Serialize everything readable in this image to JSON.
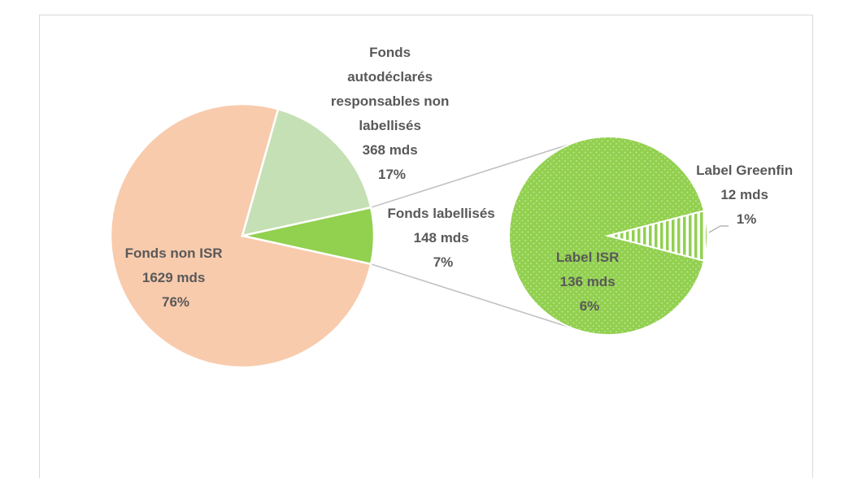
{
  "chart_data": {
    "type": "pie",
    "subtype": "pie-of-pie",
    "title": "",
    "main_pie": {
      "slices": [
        {
          "key": "non_isr",
          "name": "Fonds non ISR",
          "value": 1629,
          "value_label": "1629 mds",
          "pct": "76%",
          "color": "#f8cbad"
        },
        {
          "key": "auto",
          "name": "Fonds autodéclarés responsables non labellisés",
          "name_lines": [
            "Fonds",
            "autodéclarés",
            "responsables non",
            "labellisés"
          ],
          "value": 368,
          "value_label": "368 mds",
          "pct": "17%",
          "color": "#c5e0b4"
        },
        {
          "key": "lab",
          "name": "Fonds labellisés",
          "value": 148,
          "value_label": "148 mds",
          "pct": "7%",
          "color": "#92d050"
        }
      ]
    },
    "secondary_pie": {
      "breakdown_of": "Fonds labellisés",
      "slices": [
        {
          "key": "isr",
          "name": "Label ISR",
          "value": 136,
          "value_label": "136 mds",
          "pct": "6%",
          "color": "#92d050",
          "pattern": "dots"
        },
        {
          "key": "greenfin",
          "name": "Label Greenfin",
          "value": 12,
          "value_label": "12 mds",
          "pct": "1%",
          "color": "#92d050",
          "pattern": "vertical-stripes"
        }
      ]
    }
  }
}
